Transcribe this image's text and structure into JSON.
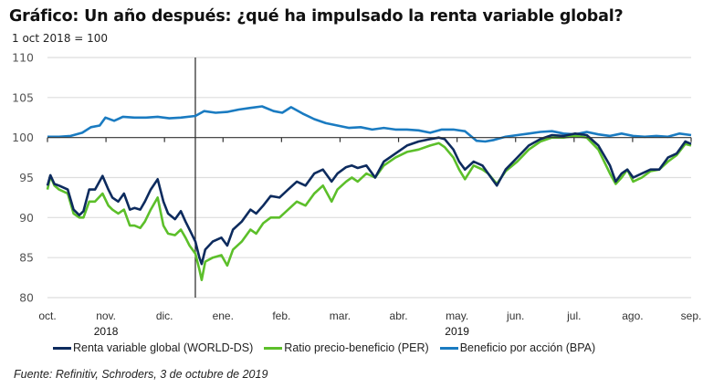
{
  "title": "Gráfico: Un año después: ¿qué ha impulsado la renta variable global?",
  "subtitle": "1 oct 2018 = 100",
  "source": "Fuente: Refinitiv, Schroders, 3 de octubre de 2019",
  "colors": {
    "world": "#0d2b5e",
    "per": "#5cbf2a",
    "bpa": "#1a7bc1",
    "grid": "#dddddd",
    "axis": "#333333"
  },
  "chart_data": {
    "type": "line",
    "title": "Gráfico: Un año después: ¿qué ha impulsado la renta variable global?",
    "ylabel": "1 oct 2018 = 100",
    "xlabel": "",
    "ylim": [
      80,
      110
    ],
    "yticks": [
      110,
      105,
      100,
      95,
      90,
      85,
      80
    ],
    "xlim": [
      0,
      11.1
    ],
    "x_unit": "months since 1 Oct 2018",
    "xtick_labels": [
      "oct.",
      "nov.",
      "dic.",
      "ene.",
      "feb.",
      "mar.",
      "abr.",
      "may.",
      "jun.",
      "jul.",
      "ago.",
      "sep."
    ],
    "year_labels": [
      {
        "label": "2018",
        "month_index": 1
      },
      {
        "label": "2019",
        "month_index": 7
      }
    ],
    "grid": true,
    "baseline": 100,
    "reference_line_x": 2.55,
    "legend_position": "bottom",
    "series": [
      {
        "name": "Renta variable global (WORLD-DS)",
        "key": "world",
        "x": [
          0,
          0.05,
          0.12,
          0.2,
          0.35,
          0.45,
          0.55,
          0.62,
          0.72,
          0.82,
          0.95,
          1.05,
          1.12,
          1.22,
          1.32,
          1.42,
          1.5,
          1.6,
          1.68,
          1.78,
          1.9,
          2.0,
          2.08,
          2.2,
          2.3,
          2.38,
          2.45,
          2.55,
          2.62,
          2.66,
          2.72,
          2.85,
          3.0,
          3.1,
          3.2,
          3.35,
          3.5,
          3.6,
          3.72,
          3.85,
          4.0,
          4.15,
          4.3,
          4.45,
          4.6,
          4.75,
          4.9,
          5.0,
          5.15,
          5.25,
          5.35,
          5.5,
          5.65,
          5.8,
          6.0,
          6.2,
          6.4,
          6.6,
          6.75,
          6.85,
          7.0,
          7.1,
          7.2,
          7.35,
          7.5,
          7.6,
          7.75,
          7.9,
          8.1,
          8.3,
          8.5,
          8.7,
          8.9,
          9.1,
          9.3,
          9.5,
          9.7,
          9.8,
          9.9,
          10.0,
          10.1,
          10.25,
          10.4,
          10.55,
          10.7,
          10.85,
          11.0,
          11.1
        ],
        "values": [
          94.0,
          95.3,
          94.2,
          94.0,
          93.5,
          91.0,
          90.3,
          90.8,
          93.5,
          93.5,
          95.2,
          93.5,
          92.5,
          92.0,
          93.0,
          91.0,
          91.2,
          91.0,
          92.0,
          93.5,
          94.8,
          92.0,
          90.5,
          89.8,
          90.8,
          89.5,
          88.5,
          87.0,
          85.0,
          84.2,
          86.0,
          87.0,
          87.5,
          86.5,
          88.5,
          89.5,
          91.0,
          90.5,
          91.5,
          92.7,
          92.5,
          93.5,
          94.5,
          94.0,
          95.5,
          96.0,
          94.5,
          95.5,
          96.3,
          96.5,
          96.2,
          96.5,
          95.0,
          97.0,
          98.0,
          99.0,
          99.5,
          99.8,
          100.0,
          99.8,
          98.5,
          97.0,
          96.0,
          97.0,
          96.5,
          95.5,
          94.0,
          96.0,
          97.5,
          99.0,
          99.8,
          100.3,
          100.2,
          100.5,
          100.3,
          99.0,
          96.5,
          94.5,
          95.5,
          96.0,
          95.0,
          95.5,
          96.0,
          96.0,
          97.5,
          98.0,
          99.5,
          99.2
        ]
      },
      {
        "name": "Ratio precio-beneficio (PER)",
        "key": "per",
        "x": [
          0,
          0.05,
          0.12,
          0.2,
          0.35,
          0.45,
          0.55,
          0.62,
          0.72,
          0.82,
          0.95,
          1.05,
          1.12,
          1.22,
          1.32,
          1.42,
          1.5,
          1.6,
          1.68,
          1.78,
          1.9,
          2.0,
          2.08,
          2.2,
          2.3,
          2.38,
          2.45,
          2.55,
          2.62,
          2.66,
          2.72,
          2.85,
          3.0,
          3.1,
          3.2,
          3.35,
          3.5,
          3.6,
          3.72,
          3.85,
          4.0,
          4.15,
          4.3,
          4.45,
          4.6,
          4.75,
          4.9,
          5.0,
          5.15,
          5.25,
          5.35,
          5.5,
          5.65,
          5.8,
          6.0,
          6.2,
          6.4,
          6.6,
          6.75,
          6.85,
          7.0,
          7.1,
          7.2,
          7.35,
          7.5,
          7.6,
          7.75,
          7.9,
          8.1,
          8.3,
          8.5,
          8.7,
          8.9,
          9.1,
          9.3,
          9.5,
          9.7,
          9.8,
          9.9,
          10.0,
          10.1,
          10.25,
          10.4,
          10.55,
          10.7,
          10.85,
          11.0,
          11.1
        ],
        "values": [
          93.5,
          95.2,
          94.0,
          93.5,
          93.0,
          90.5,
          90.0,
          90.0,
          92.0,
          92.0,
          93.0,
          91.5,
          91.0,
          90.5,
          91.0,
          89.0,
          89.0,
          88.7,
          89.5,
          91.0,
          92.5,
          89.0,
          88.0,
          87.8,
          88.5,
          87.5,
          86.5,
          85.5,
          83.5,
          82.2,
          84.5,
          85.0,
          85.3,
          84.0,
          86.0,
          87.0,
          88.5,
          88.0,
          89.3,
          90.0,
          90.0,
          91.0,
          92.0,
          91.5,
          93.0,
          94.0,
          92.0,
          93.5,
          94.5,
          95.0,
          94.5,
          95.5,
          95.0,
          96.5,
          97.5,
          98.2,
          98.5,
          99.0,
          99.3,
          98.8,
          97.5,
          96.0,
          94.8,
          96.5,
          96.0,
          95.5,
          94.2,
          95.8,
          97.0,
          98.5,
          99.5,
          100.0,
          100.0,
          100.2,
          100.0,
          98.5,
          95.5,
          94.2,
          95.0,
          96.0,
          94.5,
          95.0,
          95.8,
          96.0,
          97.0,
          97.8,
          99.2,
          99.0
        ]
      },
      {
        "name": "Beneficio por acción (BPA)",
        "key": "bpa",
        "x": [
          0,
          0.2,
          0.4,
          0.6,
          0.75,
          0.9,
          1.0,
          1.15,
          1.3,
          1.5,
          1.7,
          1.9,
          2.1,
          2.3,
          2.55,
          2.7,
          2.9,
          3.1,
          3.3,
          3.5,
          3.7,
          3.9,
          4.05,
          4.2,
          4.4,
          4.6,
          4.8,
          5.0,
          5.2,
          5.4,
          5.6,
          5.8,
          6.0,
          6.2,
          6.4,
          6.6,
          6.8,
          7.0,
          7.2,
          7.4,
          7.55,
          7.7,
          7.9,
          8.1,
          8.3,
          8.5,
          8.7,
          8.9,
          9.1,
          9.3,
          9.5,
          9.7,
          9.9,
          10.1,
          10.3,
          10.5,
          10.7,
          10.9,
          11.1
        ],
        "values": [
          100.1,
          100.1,
          100.2,
          100.6,
          101.3,
          101.5,
          102.5,
          102.1,
          102.6,
          102.5,
          102.5,
          102.6,
          102.4,
          102.5,
          102.7,
          103.3,
          103.1,
          103.2,
          103.5,
          103.7,
          103.9,
          103.3,
          103.1,
          103.8,
          103.0,
          102.3,
          101.8,
          101.5,
          101.2,
          101.3,
          101.0,
          101.2,
          101.0,
          101.0,
          100.9,
          100.6,
          101.0,
          101.0,
          100.8,
          99.6,
          99.5,
          99.7,
          100.1,
          100.3,
          100.5,
          100.7,
          100.8,
          100.5,
          100.4,
          100.7,
          100.4,
          100.2,
          100.5,
          100.2,
          100.1,
          100.2,
          100.1,
          100.5,
          100.3
        ]
      }
    ]
  }
}
